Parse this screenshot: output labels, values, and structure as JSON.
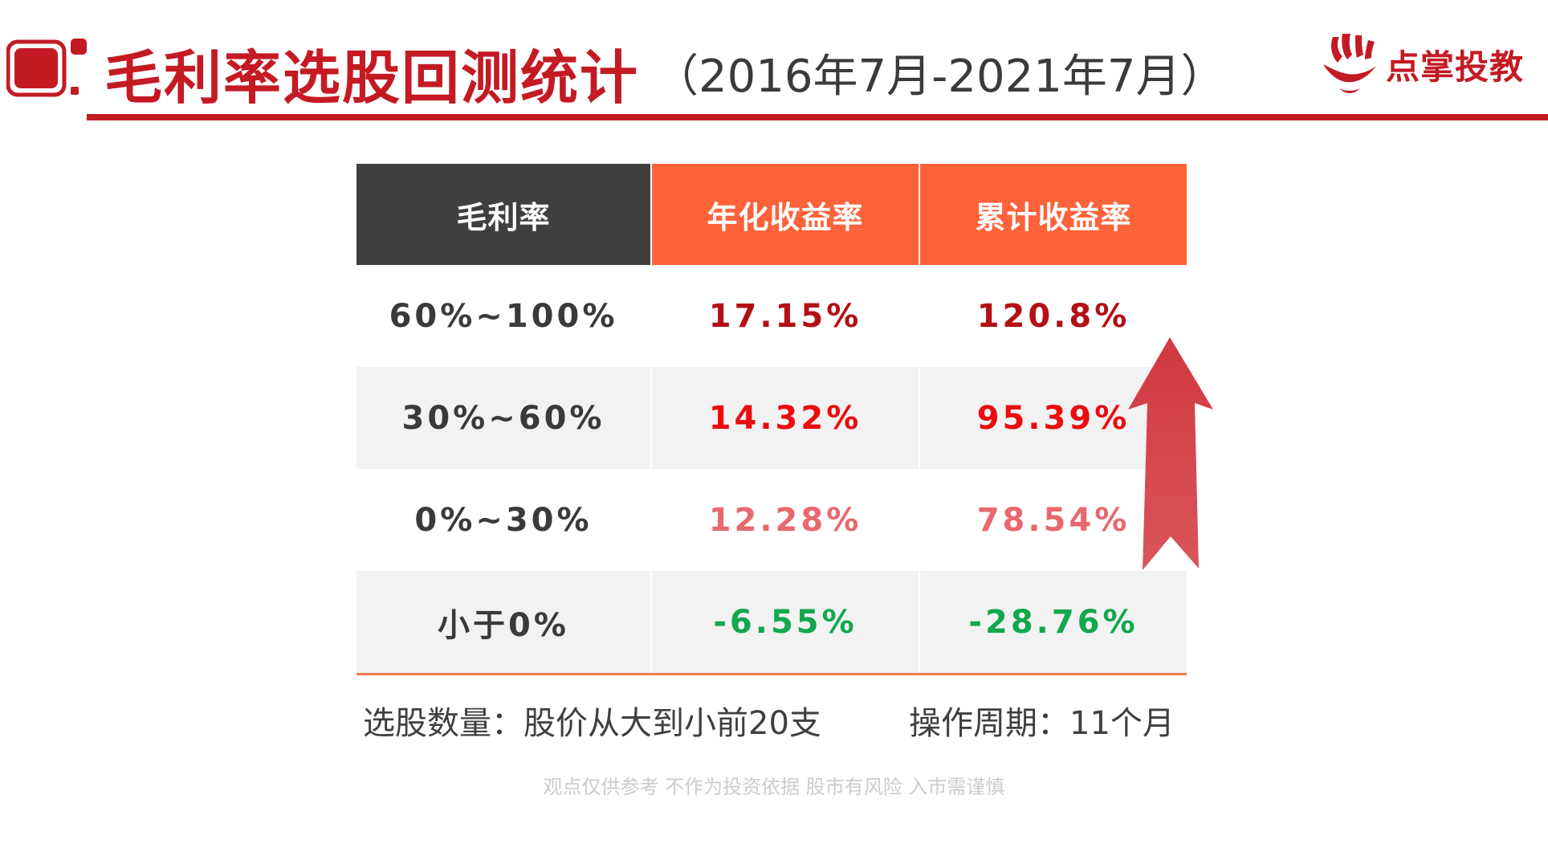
{
  "header": {
    "title": "毛利率选股回测统计",
    "subtitle": "（2016年7月-2021年7月）"
  },
  "logo": {
    "text": "点掌投教",
    "icon": "hand-logo-icon"
  },
  "colors": {
    "brand": "#c41a24",
    "header_dark": "#3f3f3f",
    "header_orange": "#fd6239",
    "row_shade": "#f2f2f2",
    "value_dark_red": "#b30f14",
    "value_red": "#ec0b0e",
    "value_light_red": "#e8686d",
    "value_green": "#12a84d",
    "arrow": "#d5474d"
  },
  "table": {
    "headers": [
      "毛利率",
      "年化收益率",
      "累计收益率"
    ],
    "rows": [
      {
        "range": "60%~100%",
        "annual": "17.15%",
        "cumulative": "120.8%",
        "tone": "dark"
      },
      {
        "range": "30%~60%",
        "annual": "14.32%",
        "cumulative": "95.39%",
        "tone": "red"
      },
      {
        "range": "0%~30%",
        "annual": "12.28%",
        "cumulative": "78.54%",
        "tone": "light"
      },
      {
        "range": "小于0%",
        "annual": "-6.55%",
        "cumulative": "-28.76%",
        "tone": "green"
      }
    ]
  },
  "notes": {
    "selection": "选股数量：股价从大到小前20支",
    "period": "操作周期：11个月"
  },
  "disclaimer": "观点仅供参考 不作为投资依据   股市有风险 入市需谨慎"
}
